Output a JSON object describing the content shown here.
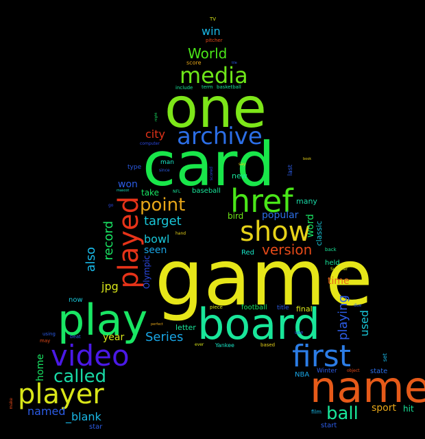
{
  "colors": {
    "background": "#000000",
    "yellow": "#e6e619",
    "lime": "#7de619",
    "green": "#19e64a",
    "teal": "#19d9a6",
    "cyan": "#19c7d9",
    "blue": "#2c5ce6",
    "violet": "#4a19e6",
    "orange": "#e6a619",
    "red": "#e63319",
    "darkorange": "#e66419"
  },
  "words": [
    {
      "text": "game",
      "color": "#e6e619"
    },
    {
      "text": "card",
      "color": "#19e64a"
    },
    {
      "text": "one",
      "color": "#7de619"
    },
    {
      "text": "board",
      "color": "#19e69a"
    },
    {
      "text": "play",
      "color": "#19e664"
    },
    {
      "text": "name",
      "color": "#e65a19"
    },
    {
      "text": "played",
      "color": "#e63319"
    },
    {
      "text": "href",
      "color": "#4ae619"
    },
    {
      "text": "first",
      "color": "#2c7de6"
    },
    {
      "text": "video",
      "color": "#4a19e6"
    },
    {
      "text": "player",
      "color": "#d9e619"
    },
    {
      "text": "show",
      "color": "#e6d219"
    },
    {
      "text": "archive",
      "color": "#2c6ee6"
    },
    {
      "text": "media",
      "color": "#6ee619"
    },
    {
      "text": "called",
      "color": "#19d9a6"
    },
    {
      "text": "point",
      "color": "#e6a619"
    },
    {
      "text": "ball",
      "color": "#19e69a"
    },
    {
      "text": "World",
      "color": "#4ae619"
    },
    {
      "text": "version",
      "color": "#e64a19"
    },
    {
      "text": "target",
      "color": "#19c7d9"
    },
    {
      "text": "record",
      "color": "#19e664"
    },
    {
      "text": "also",
      "color": "#19b8e6"
    },
    {
      "text": "playing",
      "color": "#2c5ce6"
    },
    {
      "text": "Series",
      "color": "#19a6e6"
    },
    {
      "text": "win",
      "color": "#19b8e6"
    },
    {
      "text": "used",
      "color": "#19c7d9"
    },
    {
      "text": "named",
      "color": "#2c5ce6"
    },
    {
      "text": "_blank",
      "color": "#19b8e6"
    },
    {
      "text": "bowl",
      "color": "#19c7d9"
    },
    {
      "text": "jpg",
      "color": "#d9e619"
    },
    {
      "text": "city",
      "color": "#e63319"
    },
    {
      "text": "home",
      "color": "#19e664"
    },
    {
      "text": "year",
      "color": "#d9e619"
    },
    {
      "text": "sport",
      "color": "#e6a619"
    },
    {
      "text": "won",
      "color": "#2c5ce6"
    },
    {
      "text": "seen",
      "color": "#19a6e6"
    },
    {
      "text": "time",
      "color": "#e66419"
    },
    {
      "text": "popular",
      "color": "#2c6ee6"
    },
    {
      "text": "word",
      "color": "#19e664"
    },
    {
      "text": "hit",
      "color": "#19e69a"
    },
    {
      "text": "Olympic",
      "color": "#2c4ae6"
    },
    {
      "text": "take",
      "color": "#19e664"
    },
    {
      "text": "bird",
      "color": "#6ee619"
    },
    {
      "text": "classic",
      "color": "#19c7d9"
    },
    {
      "text": "many",
      "color": "#19d9a6"
    },
    {
      "text": "new",
      "color": "#19e69a"
    },
    {
      "text": "letter",
      "color": "#19e69a"
    },
    {
      "text": "final",
      "color": "#d9e619"
    },
    {
      "text": "football",
      "color": "#19e664"
    },
    {
      "text": "baseball",
      "color": "#19e69a"
    },
    {
      "text": "Red",
      "color": "#19e6c7"
    },
    {
      "text": "held",
      "color": "#19e69a"
    },
    {
      "text": "now",
      "color": "#19c7d9"
    },
    {
      "text": "star",
      "color": "#2c5ce6"
    },
    {
      "text": "start",
      "color": "#2c5ce6"
    },
    {
      "text": "state",
      "color": "#2c6ee6"
    },
    {
      "text": "NBA",
      "color": "#19a6e6"
    },
    {
      "text": "Winter",
      "color": "#2c5ce6"
    },
    {
      "text": "film",
      "color": "#19b8e6"
    },
    {
      "text": "man",
      "color": "#19e6c7"
    },
    {
      "text": "type",
      "color": "#2c5ce6"
    },
    {
      "text": "last",
      "color": "#2c5ce6"
    },
    {
      "text": "score",
      "color": "#e6a619"
    },
    {
      "text": "title",
      "color": "#2c5ce6"
    },
    {
      "text": "set",
      "color": "#19b8e6"
    },
    {
      "text": "Yankee",
      "color": "#19e6c7"
    },
    {
      "text": "basketball",
      "color": "#19e69a"
    },
    {
      "text": "pitcher",
      "color": "#e64a19"
    },
    {
      "text": "include",
      "color": "#19e69a"
    },
    {
      "text": "term",
      "color": "#19e69a"
    },
    {
      "text": "beat",
      "color": "#2c5ce6"
    },
    {
      "text": "using",
      "color": "#2c5ce6"
    },
    {
      "text": "may",
      "color": "#e64a19"
    },
    {
      "text": "make",
      "color": "#e64a19"
    },
    {
      "text": "back",
      "color": "#19e69a"
    },
    {
      "text": "Summer",
      "color": "#d9e619"
    },
    {
      "text": "NFL",
      "color": "#19e69a"
    },
    {
      "text": "since",
      "color": "#2c5ce6"
    },
    {
      "text": "say",
      "color": "#e6d219"
    },
    {
      "text": "scored",
      "color": "#2c4ae6"
    },
    {
      "text": "piece",
      "color": "#d9e619"
    },
    {
      "text": "based",
      "color": "#e6d219"
    },
    {
      "text": "ever",
      "color": "#d9e619"
    },
    {
      "text": "use",
      "color": "#2c5ce6"
    },
    {
      "text": "object",
      "color": "#e64a19"
    },
    {
      "text": "computer",
      "color": "#2c4ae6"
    },
    {
      "text": "TV",
      "color": "#d9e619"
    },
    {
      "text": "night",
      "color": "#19e664"
    },
    {
      "text": "tile",
      "color": "#2c5ce6"
    },
    {
      "text": "mascot",
      "color": "#19e6c7"
    },
    {
      "text": "hand",
      "color": "#e6d219"
    },
    {
      "text": "perfect",
      "color": "#e6a619"
    },
    {
      "text": "book",
      "color": "#e6d219"
    },
    {
      "text": "due",
      "color": "#2c5ce6"
    },
    {
      "text": "go",
      "color": "#2c4ae6"
    }
  ]
}
